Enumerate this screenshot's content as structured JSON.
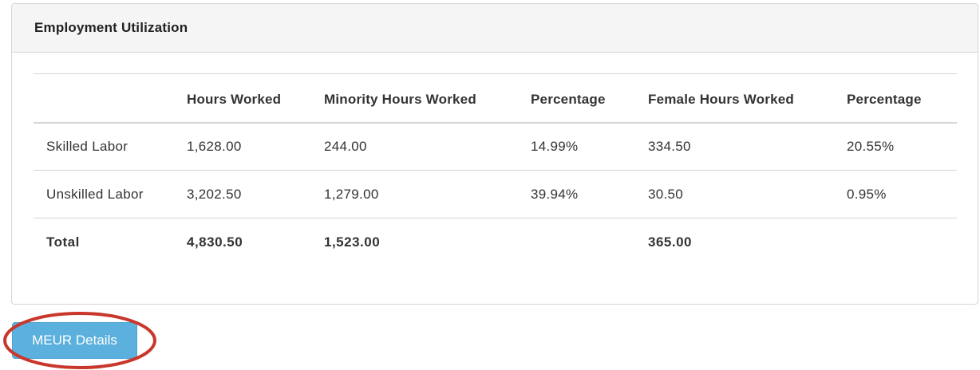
{
  "panel": {
    "title": "Employment Utilization"
  },
  "table": {
    "headers": [
      "",
      "Hours Worked",
      "Minority Hours Worked",
      "Percentage",
      "Female Hours Worked",
      "Percentage"
    ],
    "rows": [
      [
        "Skilled Labor",
        "1,628.00",
        "244.00",
        "14.99%",
        "334.50",
        "20.55%"
      ],
      [
        "Unskilled Labor",
        "3,202.50",
        "1,279.00",
        "39.94%",
        "30.50",
        "0.95%"
      ]
    ],
    "total": [
      "Total",
      "4,830.50",
      "1,523.00",
      "",
      "365.00",
      ""
    ]
  },
  "actions": {
    "meur_details_label": "MEUR Details"
  },
  "colors": {
    "button_bg": "#5bb0dd",
    "annotation_ring": "#c9372c",
    "panel_heading_bg": "#f5f5f5"
  }
}
